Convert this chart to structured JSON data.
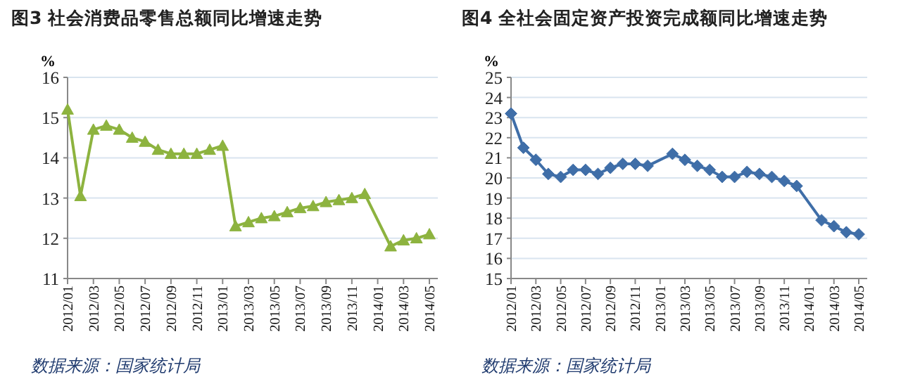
{
  "chart_data": [
    {
      "type": "line",
      "title": "图3 社会消费品零售总额同比增速走势",
      "ylabel": "%",
      "categories": [
        "2012/01",
        null,
        "2012/03",
        null,
        "2012/05",
        null,
        "2012/07",
        null,
        "2012/09",
        null,
        "2012/11",
        null,
        "2013/01",
        null,
        "2013/03",
        null,
        "2013/05",
        null,
        "2013/07",
        null,
        "2013/09",
        null,
        "2013/11",
        null,
        "2014/01",
        null,
        "2014/03",
        null,
        "2014/05"
      ],
      "series": [
        {
          "color": "#8db33f",
          "values": [
            15.2,
            13.05,
            14.7,
            14.8,
            14.7,
            14.5,
            14.4,
            14.2,
            14.1,
            14.1,
            14.1,
            14.2,
            14.3,
            12.3,
            12.4,
            12.5,
            12.55,
            12.65,
            12.75,
            12.8,
            12.9,
            12.95,
            13.0,
            13.1,
            null,
            11.8,
            11.95,
            12.0,
            12.1
          ]
        }
      ],
      "ylim": [
        11,
        16
      ],
      "yticks": [
        11,
        12,
        13,
        14,
        15,
        16
      ],
      "grid": "y",
      "marker": "triangle",
      "annotations": [
        "数据来源：国家统计局"
      ]
    },
    {
      "type": "line",
      "title": "图4 全社会固定资产投资完成额同比增速走势",
      "ylabel": "%",
      "categories": [
        "2012/01",
        null,
        "2012/03",
        null,
        "2012/05",
        null,
        "2012/07",
        null,
        "2012/09",
        null,
        "2012/11",
        null,
        "2013/01",
        null,
        "2013/03",
        null,
        "2013/05",
        null,
        "2013/07",
        null,
        "2013/09",
        null,
        "2013/11",
        null,
        "2014/01",
        null,
        "2014/03",
        null,
        "2014/05"
      ],
      "series": [
        {
          "color": "#3f6ea8",
          "values": [
            23.2,
            21.5,
            20.9,
            20.2,
            20.05,
            20.4,
            20.4,
            20.2,
            20.5,
            20.7,
            20.7,
            20.6,
            null,
            21.2,
            20.9,
            20.6,
            20.4,
            20.05,
            20.05,
            20.3,
            20.2,
            20.05,
            19.85,
            19.6,
            null,
            17.9,
            17.6,
            17.3,
            17.2
          ]
        }
      ],
      "ylim": [
        15,
        25
      ],
      "yticks": [
        15,
        16,
        17,
        18,
        19,
        20,
        21,
        22,
        23,
        24,
        25
      ],
      "grid": "y",
      "marker": "diamond",
      "annotations": [
        "数据来源：国家统计局"
      ]
    }
  ]
}
